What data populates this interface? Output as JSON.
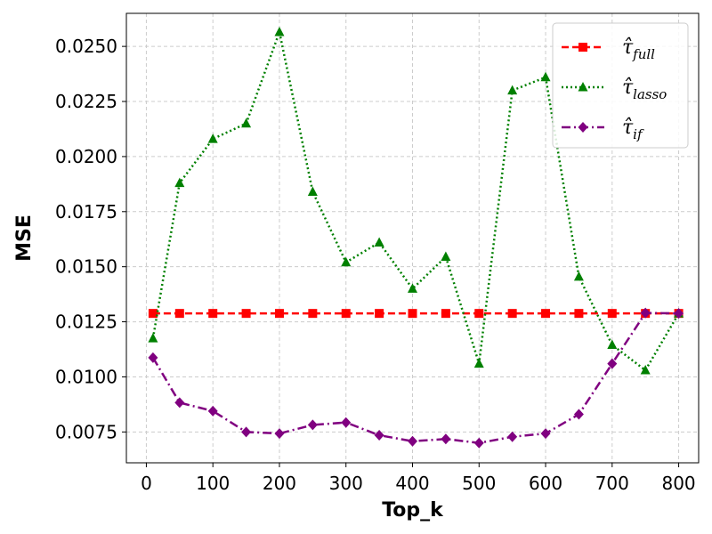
{
  "chart_data": {
    "type": "line",
    "xlabel": "Top_k",
    "ylabel": "MSE",
    "xlim": [
      -30,
      830
    ],
    "ylim": [
      0.0061,
      0.0265
    ],
    "xticks": [
      0,
      100,
      200,
      300,
      400,
      500,
      600,
      700,
      800
    ],
    "xtick_labels": [
      "0",
      "100",
      "200",
      "300",
      "400",
      "500",
      "600",
      "700",
      "800"
    ],
    "yticks": [
      0.0075,
      0.01,
      0.0125,
      0.015,
      0.0175,
      0.02,
      0.0225,
      0.025
    ],
    "ytick_labels": [
      "0.0075",
      "0.0100",
      "0.0125",
      "0.0150",
      "0.0175",
      "0.0200",
      "0.0225",
      "0.0250"
    ],
    "grid": true,
    "legend_position": "top-right",
    "x": [
      10,
      50,
      100,
      150,
      200,
      250,
      300,
      350,
      400,
      450,
      500,
      550,
      600,
      650,
      700,
      750,
      800
    ],
    "series": [
      {
        "name": "τ̂_full",
        "legend_main": "τ̂",
        "legend_sub": "full",
        "color": "#ff0000",
        "marker": "square",
        "line_style": "dashed",
        "values": [
          0.01288,
          0.01288,
          0.01288,
          0.01288,
          0.01288,
          0.01288,
          0.01288,
          0.01288,
          0.01288,
          0.01288,
          0.01288,
          0.01288,
          0.01288,
          0.01288,
          0.01288,
          0.01288,
          0.01288
        ]
      },
      {
        "name": "τ̂_lasso",
        "legend_main": "τ̂",
        "legend_sub": "lasso",
        "color": "#008000",
        "marker": "triangle",
        "line_style": "dotted",
        "values": [
          0.01175,
          0.0188,
          0.0208,
          0.0215,
          0.02565,
          0.0184,
          0.0152,
          0.0161,
          0.014,
          0.01545,
          0.0106,
          0.023,
          0.0236,
          0.01455,
          0.01145,
          0.0103,
          0.01288
        ]
      },
      {
        "name": "τ̂_if",
        "legend_main": "τ̂",
        "legend_sub": "if",
        "color": "#800080",
        "marker": "diamond",
        "line_style": "dashdot",
        "values": [
          0.01087,
          0.00883,
          0.00845,
          0.0075,
          0.00743,
          0.00782,
          0.00793,
          0.00735,
          0.00708,
          0.00718,
          0.007,
          0.00728,
          0.00743,
          0.0083,
          0.0106,
          0.0129,
          0.01288
        ]
      }
    ]
  }
}
